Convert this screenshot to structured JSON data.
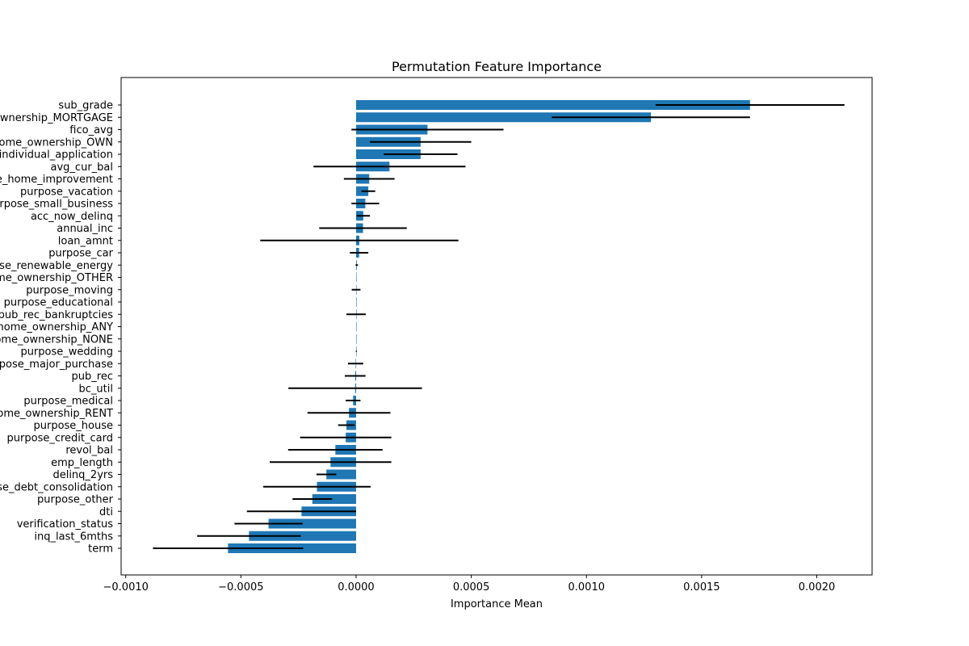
{
  "chart_data": {
    "type": "bar",
    "orientation": "horizontal",
    "title": "Permutation Feature Importance",
    "xlabel": "Importance Mean",
    "ylabel": "",
    "xlim": [
      -0.00102,
      0.00224
    ],
    "xticks": [
      -0.001,
      -0.0005,
      0.0,
      0.0005,
      0.001,
      0.0015,
      0.002
    ],
    "xtick_labels": [
      "−0.0010",
      "−0.0005",
      "0.0000",
      "0.0005",
      "0.0010",
      "0.0015",
      "0.0020"
    ],
    "grid": false,
    "bar_color": "#1f77b4",
    "errorbar_color": "#000000",
    "categories": [
      "sub_grade",
      "home_ownership_MORTGAGE",
      "fico_avg",
      "home_ownership_OWN",
      "individual_application",
      "avg_cur_bal",
      "purpose_home_improvement",
      "purpose_vacation",
      "purpose_small_business",
      "acc_now_delinq",
      "annual_inc",
      "loan_amnt",
      "purpose_car",
      "purpose_renewable_energy",
      "home_ownership_OTHER",
      "purpose_moving",
      "purpose_educational",
      "pub_rec_bankruptcies",
      "home_ownership_ANY",
      "home_ownership_NONE",
      "purpose_wedding",
      "purpose_major_purchase",
      "pub_rec",
      "bc_util",
      "purpose_medical",
      "home_ownership_RENT",
      "purpose_house",
      "purpose_credit_card",
      "revol_bal",
      "emp_length",
      "delinq_2yrs",
      "purpose_debt_consolidation",
      "purpose_other",
      "dti",
      "verification_status",
      "inq_last_6mths",
      "term"
    ],
    "values": [
      0.00171,
      0.00128,
      0.00031,
      0.00028,
      0.00028,
      0.000145,
      5.7e-05,
      5.3e-05,
      4e-05,
      3.1e-05,
      3e-05,
      1.4e-05,
      1.3e-05,
      3e-06,
      0.0,
      0.0,
      0.0,
      0.0,
      0.0,
      0.0,
      1e-06,
      -2e-06,
      -4e-06,
      -4e-06,
      -1.3e-05,
      -3.1e-05,
      -4.2e-05,
      -4.5e-05,
      -9e-05,
      -0.000111,
      -0.000129,
      -0.00017,
      -0.00019,
      -0.000237,
      -0.00038,
      -0.000465,
      -0.000556
    ],
    "errors": [
      0.00041,
      0.00043,
      0.00033,
      0.00022,
      0.00016,
      0.00033,
      0.00011,
      3e-05,
      6e-05,
      2.9e-05,
      0.00019,
      0.00043,
      4e-05,
      5e-06,
      0.0,
      1.9e-05,
      0.0,
      4.2e-05,
      0.0,
      0.0,
      2e-06,
      3.3e-05,
      4.5e-05,
      0.00029,
      3.2e-05,
      0.00018,
      3.6e-05,
      0.000198,
      0.000205,
      0.000264,
      4.3e-05,
      0.000233,
      8.6e-05,
      0.000237,
      0.000148,
      0.000225,
      0.000326
    ]
  }
}
